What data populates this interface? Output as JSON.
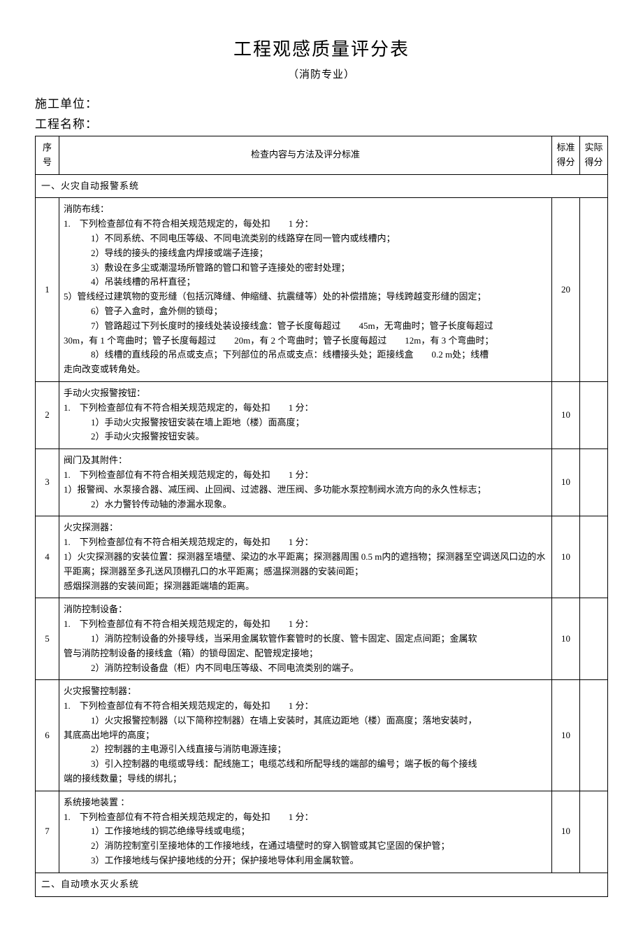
{
  "title": "工程观感质量评分表",
  "subtitle": "（消防专业）",
  "meta": {
    "builder_label": "施工单位：",
    "project_label": "工程名称："
  },
  "headers": {
    "num": "序号",
    "content": "检查内容与方法及评分标准",
    "std": "标准得分",
    "act": "实际得分"
  },
  "section1": "一、火灾自动报警系统",
  "section2": "二、自动喷水灭火系统",
  "rows": [
    {
      "num": "1",
      "std": "20",
      "act": "",
      "title": "消防布线：",
      "lead": "1.　下列检查部位有不符合相关规范规定的，每处扣　　1 分：",
      "lines": [
        "1）不同系统、不同电压等级、不同电流类别的线路穿在同一管内或线槽内；",
        "2）导线的接头的接线盒内焊接或端子连接；",
        "3）敷设在多尘或潮湿场所管路的管口和管子连接处的密封处理；",
        "4）吊装线槽的吊杆直径；"
      ],
      "body": "5）管线经过建筑物的变形缝（包括沉降缝、伸缩缝、抗震缝等）处的补偿措施；导线跨越变形缝的固定；",
      "lines2": [
        "6）管子入盒时，盒外侧的锁母；",
        "7）管路超过下列长度时的接线处装设接线盒：管子长度每超过　　45m，无弯曲时；管子长度每超过"
      ],
      "body2": "30m，有 1 个弯曲时；管子长度每超过　　20m，有 2 个弯曲时；管子长度每超过　　12m，有 3 个弯曲时；",
      "lines3": [
        "8）线槽的直线段的吊点或支点；下列部位的吊点或支点：线槽接头处；距接线盒　　0.2 m处；线槽"
      ],
      "body3": "走向改变或转角处。"
    },
    {
      "num": "2",
      "std": "10",
      "act": "",
      "title": "手动火灾报警按钮：",
      "lead": "1.　下列检查部位有不符合相关规范规定的，每处扣　　1 分：",
      "lines": [
        "1）手动火灾报警按钮安装在墙上距地（楼）面高度；",
        "2）手动火灾报警按钮安装。"
      ]
    },
    {
      "num": "3",
      "std": "10",
      "act": "",
      "title": "阀门及其附件：",
      "lead": "1.　下列检查部位有不符合相关规范规定的，每处扣　　1 分：",
      "body": "1）报警阀、水泵接合器、减压阀、止回阀、过滤器、泄压阀、多功能水泵控制阀水流方向的永久性标志；",
      "lines2": [
        "2）水力警铃传动轴的渗漏水现象。"
      ]
    },
    {
      "num": "4",
      "std": "10",
      "act": "",
      "title": "火灾探测器：",
      "lead": "1.　下列检查部位有不符合相关规范规定的，每处扣　　1 分：",
      "body": "1）火灾探测器的安装位置：探测器至墙壁、梁边的水平距离；探测器周围 0.5 m内的遮挡物；探测器至空调送风口边的水平距离；探测器至多孔送风顶棚孔口的水平距离；感温探测器的安装间距；",
      "body2": "感烟探测器的安装间距；探测器距端墙的距离。"
    },
    {
      "num": "5",
      "std": "10",
      "act": "",
      "title": "消防控制设备：",
      "lead": "1.　下列检查部位有不符合相关规范规定的，每处扣　　1 分：",
      "lines": [
        "1）消防控制设备的外接导线，当采用金属软管作套管时的长度、管卡固定、固定点间距；金属软"
      ],
      "body": "管与消防控制设备的接线盒（箱）的锁母固定、配管规定接地；",
      "lines2": [
        "2）消防控制设备盘（柜）内不同电压等级、不同电流类别的端子。"
      ]
    },
    {
      "num": "6",
      "std": "10",
      "act": "",
      "title": "火灾报警控制器：",
      "lead": "1.　下列检查部位有不符合相关规范规定的，每处扣　　1 分：",
      "lines": [
        "1）火灾报警控制器（以下简称控制器）在墙上安装时，其底边距地（楼）面高度；落地安装时，"
      ],
      "body": "其底高出地坪的高度；",
      "lines2": [
        "2）控制器的主电源引入线直接与消防电源连接；",
        "3）引入控制器的电缆或导线：配线施工；电缆芯线和所配导线的端部的编号；端子板的每个接线"
      ],
      "body2": "端的接线数量；导线的绑扎；"
    },
    {
      "num": "7",
      "std": "10",
      "act": "",
      "title": "系统接地装置 ：",
      "lead": "1.　下列检查部位有不符合相关规范规定的，每处扣　　1 分：",
      "lines": [
        "1）工作接地线的铜芯绝缘导线或电缆；",
        "2）消防控制室引至接地体的工作接地线，在通过墙壁时的穿入钢管或其它坚固的保护管；",
        "3）工作接地线与保护接地线的分开；保护接地导体利用金属软管。"
      ]
    }
  ]
}
